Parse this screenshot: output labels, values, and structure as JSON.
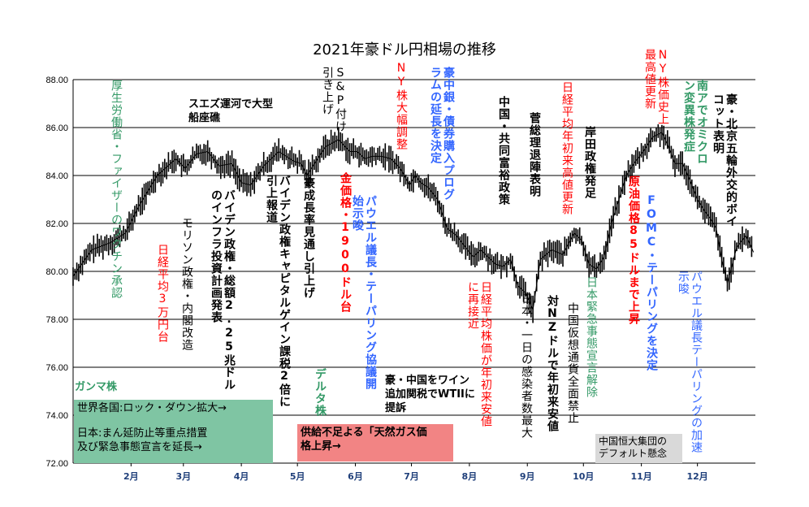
{
  "chart_data": {
    "type": "line",
    "title": "2021年豪ドル円相場の推移",
    "xlabel": "",
    "ylabel": "",
    "ylim": [
      72,
      88
    ],
    "yticks": [
      "72.00",
      "74.00",
      "76.00",
      "78.00",
      "80.00",
      "82.00",
      "84.00",
      "86.00",
      "88.00"
    ],
    "ytick_values": [
      72,
      74,
      76,
      78,
      80,
      82,
      84,
      86,
      88
    ],
    "xticks": [
      "2月",
      "3月",
      "4月",
      "5月",
      "6月",
      "7月",
      "8月",
      "9月",
      "10月",
      "11月",
      "12月"
    ],
    "xtick_days": [
      31,
      59,
      90,
      120,
      151,
      181,
      212,
      243,
      273,
      304,
      334
    ],
    "x_domain": [
      0,
      365
    ],
    "grid": true,
    "series": [
      {
        "x": [
          0,
          10,
          20,
          28,
          35,
          45,
          55,
          60,
          66,
          72,
          78,
          85,
          90,
          95,
          102,
          110,
          118,
          122,
          125,
          130,
          135,
          142,
          148,
          152,
          156,
          160,
          165,
          170,
          175,
          180,
          183,
          186,
          190,
          195,
          200,
          205,
          210,
          214,
          218,
          222,
          226,
          230,
          234,
          238,
          242,
          246,
          250,
          256,
          262,
          268,
          272,
          276,
          280,
          284,
          288,
          292,
          296,
          300,
          305,
          310,
          315,
          318,
          322,
          326,
          330,
          334,
          338,
          341,
          344,
          347,
          350,
          355,
          360,
          364
        ],
        "values": [
          79.8,
          80.9,
          81.2,
          81.6,
          82.7,
          84.0,
          84.7,
          84.3,
          84.9,
          85.0,
          84.4,
          84.5,
          83.7,
          83.6,
          84.4,
          85.0,
          84.6,
          84.5,
          84.0,
          84.6,
          85.2,
          85.5,
          85.0,
          85.0,
          84.7,
          84.8,
          84.8,
          84.7,
          84.3,
          83.6,
          84.0,
          83.7,
          83.5,
          83.0,
          81.8,
          81.5,
          81.0,
          80.6,
          80.9,
          80.6,
          80.3,
          80.2,
          80.5,
          79.4,
          79.1,
          78.4,
          80.5,
          80.9,
          80.7,
          81.6,
          81.3,
          80.3,
          80.1,
          80.6,
          82.0,
          83.0,
          84.0,
          84.5,
          85.0,
          85.6,
          85.8,
          85.3,
          84.5,
          84.5,
          83.8,
          83.0,
          82.5,
          82.2,
          81.8,
          80.5,
          79.5,
          81.0,
          81.5,
          80.8
        ]
      }
    ]
  },
  "annotations": [
    {
      "id": "vaccine",
      "text": "厚生労働省・ファイザーのワクチン承認",
      "color": "#339966"
    },
    {
      "id": "nikkei-30000",
      "text": "日経平均3万円台",
      "color": "#ff0000"
    },
    {
      "id": "morison",
      "text": "モリソン政権・内閣改造",
      "color": "#000000"
    },
    {
      "id": "suez",
      "text": "スエズ運河で大型船座礁",
      "color": "#000000"
    },
    {
      "id": "biden-infra",
      "text": "バイデン政権・総額2.25兆ドルのインフラ投資計画発表",
      "color": "#000000"
    },
    {
      "id": "biden-tax",
      "text": "バイデン政権キャピタルゲイン課税2倍に引上報道",
      "color": "#000000"
    },
    {
      "id": "growth-up",
      "text": "豪成長率見通し引上げ",
      "color": "#000000"
    },
    {
      "id": "sp-record",
      "text": "S&P付け引き上げ",
      "color": "#000000"
    },
    {
      "id": "gold",
      "text": "金価格・1900ドル台",
      "color": "#ff0000"
    },
    {
      "id": "powell-taper-start",
      "text": "パウエル議長・テーパリング協議開始示唆",
      "color": "#3366ff"
    },
    {
      "id": "ny-drop",
      "text": "NY株大幅調整",
      "color": "#ff0000"
    },
    {
      "id": "rba-extend",
      "text": "豪中銀・債券購入プログラムの延長を決定",
      "color": "#3366ff"
    },
    {
      "id": "china-prosperity",
      "text": "中国・共同富裕政策",
      "color": "#000000"
    },
    {
      "id": "nikkei-low",
      "text": "日経平均株価が年初来安値に再接近",
      "color": "#ff0000"
    },
    {
      "id": "daily-infections",
      "text": "日本・一日の感染者数最大",
      "color": "#000000"
    },
    {
      "id": "suga",
      "text": "菅総理退陣表明",
      "color": "#000000"
    },
    {
      "id": "nzd-low",
      "text": "対NZドルで年初来安値",
      "color": "#000000"
    },
    {
      "id": "crypto-ban",
      "text": "中国仮想通貨全面禁止",
      "color": "#000000"
    },
    {
      "id": "nikkei-high",
      "text": "日経平均年初来高値更新",
      "color": "#ff0000"
    },
    {
      "id": "kishida",
      "text": "岸田政権発足",
      "color": "#000000"
    },
    {
      "id": "emergency-lift",
      "text": "日本緊急事態宣言解除",
      "color": "#339966"
    },
    {
      "id": "oil",
      "text": "原油価格85ドルまで上昇",
      "color": "#ff0000"
    },
    {
      "id": "fomc",
      "text": "FOMC・テーパリングを決定",
      "color": "#3366ff"
    },
    {
      "id": "ny-record",
      "text": "NY株価史上最高値更新",
      "color": "#ff0000"
    },
    {
      "id": "omicron",
      "text": "南アでオミクロン変異株発症",
      "color": "#339966"
    },
    {
      "id": "powell-accel",
      "text": "パウエル議長テーパリングの加速示唆",
      "color": "#3366ff"
    },
    {
      "id": "boycott",
      "text": "豪・北京五輪外交的ボイコット表明",
      "color": "#000000"
    },
    {
      "id": "gamma",
      "text": "ガンマ株",
      "color": "#339966"
    },
    {
      "id": "delta",
      "text": "デルタ株",
      "color": "#339966"
    },
    {
      "id": "wine",
      "text": "豪・中国をワイン追加関税でWTIIに提訴",
      "color": "#000000"
    }
  ],
  "boxes": {
    "lockdown": "世界各国:ロック・ダウン拡大→",
    "emergency_1": "日本:まん延防止等重点措置",
    "emergency_2": "及び緊急事態宣言を延長→",
    "gas_1": "供給不足よる「天然ガス価",
    "gas_2": "格上昇→",
    "evergrande_1": "中国恒大集団の",
    "evergrande_2": "デフォルト懸念"
  },
  "colors": {
    "green": "#339966",
    "red": "#ff0000",
    "blue": "#3366ff",
    "box_green": "#7fc5a3",
    "box_red": "#f28484",
    "box_gray": "#d9d9d9"
  }
}
